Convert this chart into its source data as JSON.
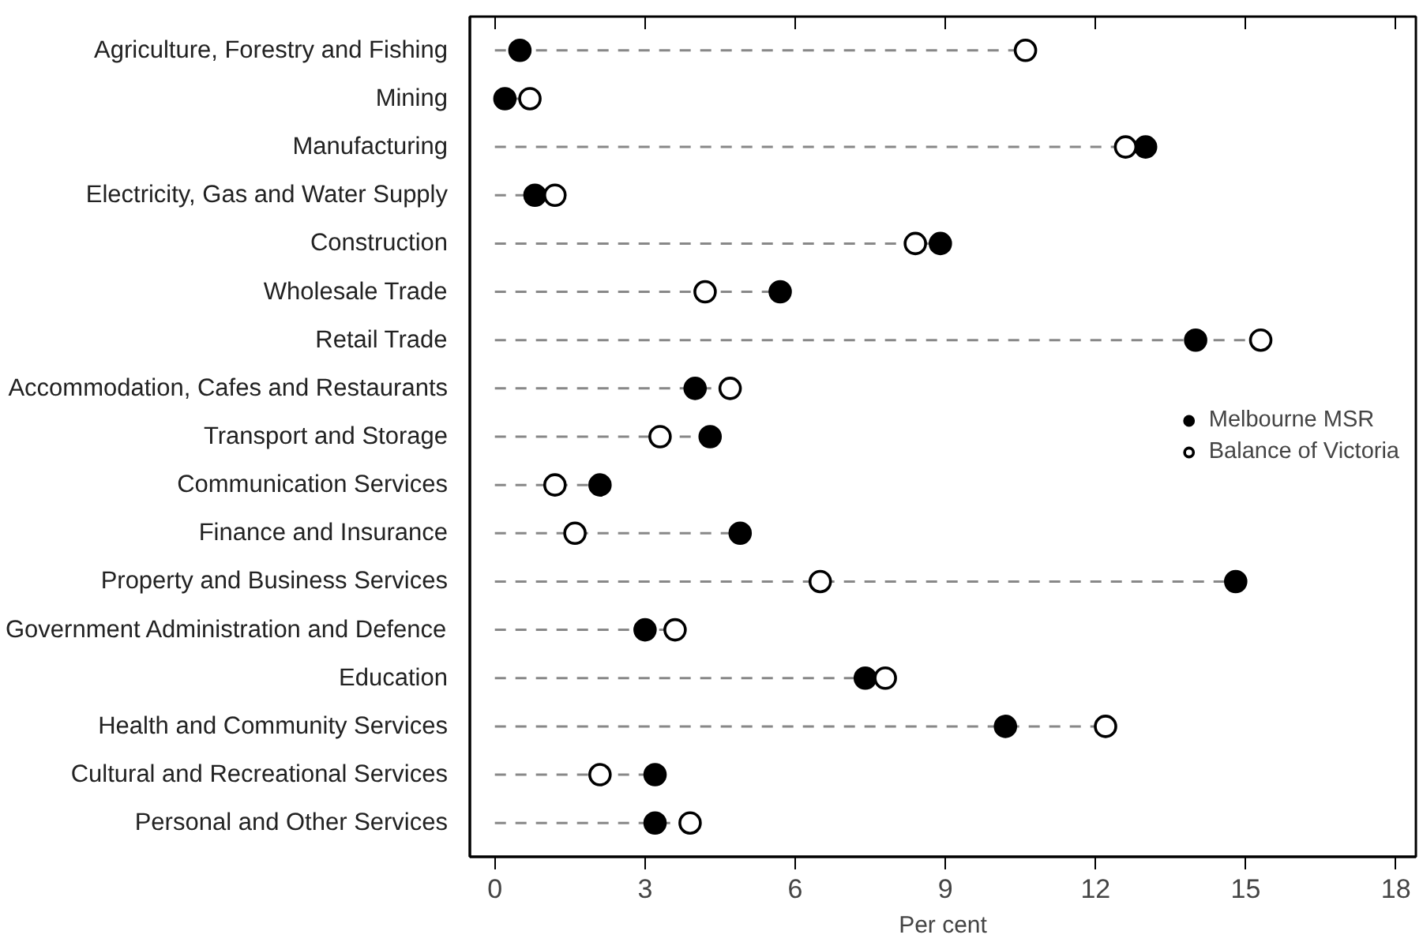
{
  "chart_data": {
    "type": "lollipop",
    "xlabel": "Per cent",
    "categories": [
      "Agriculture, Forestry and Fishing",
      "Mining",
      "Manufacturing",
      "Electricity, Gas and Water Supply",
      "Construction",
      "Wholesale Trade",
      "Retail Trade",
      "Accommodation, Cafes and Restaurants",
      "Transport and Storage",
      "Communication Services",
      "Finance and Insurance",
      "Property and Business Services",
      "Government Administration and Defence",
      "Education",
      "Health and Community Services",
      "Cultural and Recreational Services",
      "Personal and Other Services"
    ],
    "orientation": "horizontal",
    "series": [
      {
        "name": "Melbourne MSR",
        "color": "#000000",
        "values": [
          0.5,
          0.2,
          13.0,
          0.8,
          8.9,
          5.7,
          14.0,
          4.0,
          4.3,
          2.1,
          4.9,
          14.8,
          3.0,
          7.4,
          10.2,
          3.2,
          3.2
        ]
      },
      {
        "name": "Balance of Victoria",
        "color": "#ffffff",
        "values": [
          10.6,
          0.7,
          12.6,
          1.2,
          8.4,
          4.2,
          15.3,
          4.7,
          3.3,
          1.2,
          1.6,
          6.5,
          3.6,
          7.8,
          12.2,
          2.1,
          3.9
        ]
      }
    ],
    "xlim": [
      -0.5,
      18.4
    ],
    "xticks": [
      0,
      3,
      6,
      9,
      12,
      15,
      18
    ],
    "marker": "circle",
    "line_style": "dashed",
    "grid": false,
    "legend": "center right"
  }
}
